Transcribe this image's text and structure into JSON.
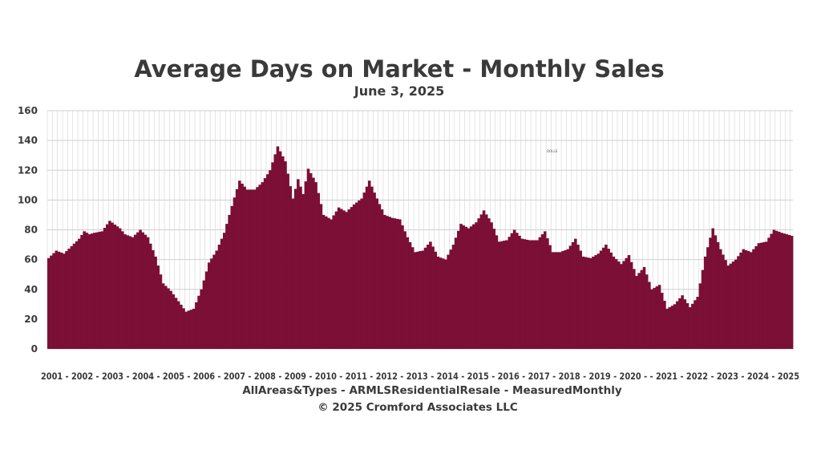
{
  "chart_data": {
    "type": "bar",
    "title": "Average Days on Market - Monthly Sales",
    "subtitle": "June 3, 2025",
    "x_axis_text": "2001 - 2002 - 2003 - 2004 - 2005 - 2006 - 2007 - 2008 - 2009 - 2010 - 2011 - 2012 - 2013 - 2014 - 2015 - 2016 - 2017 - 2018 - 2019 - 2020 - - 2021 - 2022 - 2023 - 2024 - 2025",
    "caption_line1": "AllAreas&Types - ARMLSResidentialResale - MeasuredMonthly",
    "caption_line2": "© 2025 Cromford Associates LLC",
    "annotation": "DOLLS",
    "ylim": [
      0,
      160
    ],
    "yticks": [
      0,
      20,
      40,
      60,
      80,
      100,
      120,
      140,
      160
    ],
    "bar_color": "#7b0f35",
    "grid": true,
    "x_start": "2001-01",
    "x_end": "2025-05",
    "anchors": [
      [
        "2001-01",
        61
      ],
      [
        "2001-04",
        66
      ],
      [
        "2001-07",
        64
      ],
      [
        "2001-10",
        69
      ],
      [
        "2002-01",
        74
      ],
      [
        "2002-03",
        79
      ],
      [
        "2002-05",
        77
      ],
      [
        "2002-07",
        78
      ],
      [
        "2002-10",
        79
      ],
      [
        "2003-01",
        86
      ],
      [
        "2003-05",
        81
      ],
      [
        "2003-07",
        77
      ],
      [
        "2003-10",
        75
      ],
      [
        "2004-01",
        80
      ],
      [
        "2004-04",
        75
      ],
      [
        "2004-07",
        62
      ],
      [
        "2004-10",
        44
      ],
      [
        "2005-01",
        39
      ],
      [
        "2005-04",
        32
      ],
      [
        "2005-07",
        25
      ],
      [
        "2005-10",
        27
      ],
      [
        "2006-01",
        40
      ],
      [
        "2006-04",
        58
      ],
      [
        "2006-07",
        66
      ],
      [
        "2006-10",
        78
      ],
      [
        "2007-01",
        96
      ],
      [
        "2007-04",
        113
      ],
      [
        "2007-07",
        107
      ],
      [
        "2007-10",
        107
      ],
      [
        "2008-01",
        112
      ],
      [
        "2008-04",
        120
      ],
      [
        "2008-07",
        136
      ],
      [
        "2008-10",
        126
      ],
      [
        "2009-01",
        101
      ],
      [
        "2009-03",
        114
      ],
      [
        "2009-05",
        104
      ],
      [
        "2009-07",
        121
      ],
      [
        "2009-10",
        112
      ],
      [
        "2010-01",
        90
      ],
      [
        "2010-04",
        87
      ],
      [
        "2010-07",
        95
      ],
      [
        "2010-10",
        92
      ],
      [
        "2011-01",
        97
      ],
      [
        "2011-04",
        101
      ],
      [
        "2011-07",
        113
      ],
      [
        "2011-10",
        101
      ],
      [
        "2012-01",
        90
      ],
      [
        "2012-04",
        88
      ],
      [
        "2012-07",
        87
      ],
      [
        "2012-10",
        75
      ],
      [
        "2013-01",
        65
      ],
      [
        "2013-04",
        66
      ],
      [
        "2013-07",
        72
      ],
      [
        "2013-10",
        62
      ],
      [
        "2014-01",
        60
      ],
      [
        "2014-04",
        70
      ],
      [
        "2014-07",
        84
      ],
      [
        "2014-10",
        81
      ],
      [
        "2015-01",
        85
      ],
      [
        "2015-04",
        93
      ],
      [
        "2015-07",
        85
      ],
      [
        "2015-10",
        72
      ],
      [
        "2016-01",
        73
      ],
      [
        "2016-04",
        80
      ],
      [
        "2016-07",
        74
      ],
      [
        "2016-10",
        73
      ],
      [
        "2017-01",
        73
      ],
      [
        "2017-04",
        79
      ],
      [
        "2017-07",
        65
      ],
      [
        "2017-10",
        65
      ],
      [
        "2018-01",
        67
      ],
      [
        "2018-04",
        74
      ],
      [
        "2018-07",
        62
      ],
      [
        "2018-10",
        61
      ],
      [
        "2019-01",
        64
      ],
      [
        "2019-04",
        70
      ],
      [
        "2019-07",
        62
      ],
      [
        "2019-10",
        57
      ],
      [
        "2020-01",
        63
      ],
      [
        "2020-04",
        49
      ],
      [
        "2020-07",
        55
      ],
      [
        "2020-10",
        40
      ],
      [
        "2021-01",
        43
      ],
      [
        "2021-04",
        27
      ],
      [
        "2021-07",
        30
      ],
      [
        "2021-10",
        36
      ],
      [
        "2022-01",
        28
      ],
      [
        "2022-04",
        35
      ],
      [
        "2022-07",
        62
      ],
      [
        "2022-10",
        81
      ],
      [
        "2023-01",
        67
      ],
      [
        "2023-04",
        56
      ],
      [
        "2023-07",
        60
      ],
      [
        "2023-10",
        67
      ],
      [
        "2024-01",
        65
      ],
      [
        "2024-04",
        71
      ],
      [
        "2024-07",
        72
      ],
      [
        "2024-10",
        80
      ],
      [
        "2025-01",
        78
      ],
      [
        "2025-05",
        76
      ]
    ]
  }
}
